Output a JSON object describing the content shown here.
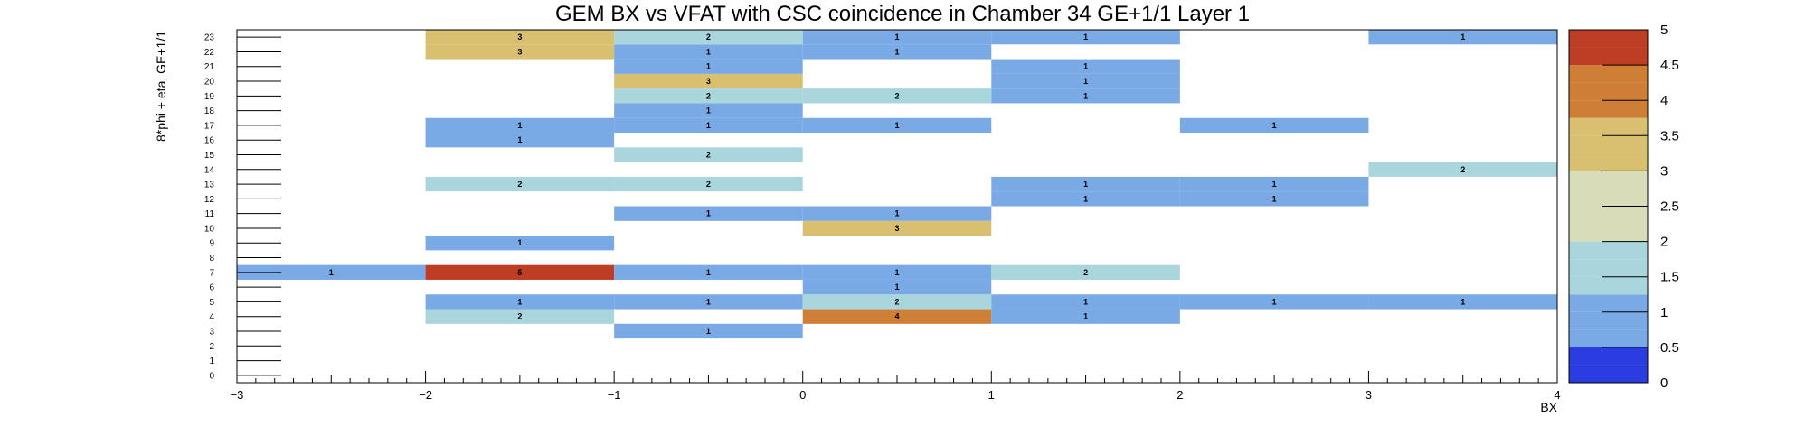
{
  "chart_data": {
    "type": "heatmap",
    "title": "GEM BX vs VFAT with CSC coincidence in Chamber 34 GE+1/1 Layer 1",
    "xlabel": "BX",
    "ylabel": "8*phi + eta, GE+1/1",
    "xlim": [
      -3,
      4
    ],
    "ylim": [
      0,
      24
    ],
    "x_ticks": [
      "−3",
      "−2",
      "−1",
      "0",
      "1",
      "2",
      "3",
      "4"
    ],
    "y_ticks": [
      "0",
      "1",
      "2",
      "3",
      "4",
      "5",
      "6",
      "7",
      "8",
      "9",
      "10",
      "11",
      "12",
      "13",
      "14",
      "15",
      "16",
      "17",
      "18",
      "19",
      "20",
      "21",
      "22",
      "23"
    ],
    "zlim": [
      0,
      5
    ],
    "z_ticks": [
      "0",
      "0.5",
      "1",
      "1.5",
      "2",
      "2.5",
      "3",
      "3.5",
      "4",
      "4.5",
      "5"
    ],
    "palette": [
      "#2a3de0",
      "#7aaae6",
      "#a8d6dc",
      "#d8dcb8",
      "#d9c070",
      "#cf7e36",
      "#bd3e24"
    ],
    "cells": [
      {
        "x": -3,
        "y": 7,
        "value": 1
      },
      {
        "x": -2,
        "y": 4,
        "value": 2
      },
      {
        "x": -2,
        "y": 5,
        "value": 1
      },
      {
        "x": -2,
        "y": 7,
        "value": 5
      },
      {
        "x": -2,
        "y": 9,
        "value": 1
      },
      {
        "x": -2,
        "y": 13,
        "value": 2
      },
      {
        "x": -2,
        "y": 16,
        "value": 1
      },
      {
        "x": -2,
        "y": 17,
        "value": 1
      },
      {
        "x": -2,
        "y": 22,
        "value": 3
      },
      {
        "x": -2,
        "y": 23,
        "value": 3
      },
      {
        "x": -1,
        "y": 3,
        "value": 1
      },
      {
        "x": -1,
        "y": 5,
        "value": 1
      },
      {
        "x": -1,
        "y": 7,
        "value": 1
      },
      {
        "x": -1,
        "y": 11,
        "value": 1
      },
      {
        "x": -1,
        "y": 13,
        "value": 2
      },
      {
        "x": -1,
        "y": 15,
        "value": 2
      },
      {
        "x": -1,
        "y": 17,
        "value": 1
      },
      {
        "x": -1,
        "y": 18,
        "value": 1
      },
      {
        "x": -1,
        "y": 19,
        "value": 2
      },
      {
        "x": -1,
        "y": 20,
        "value": 3
      },
      {
        "x": -1,
        "y": 21,
        "value": 1
      },
      {
        "x": -1,
        "y": 22,
        "value": 1
      },
      {
        "x": -1,
        "y": 23,
        "value": 2
      },
      {
        "x": 0,
        "y": 4,
        "value": 4
      },
      {
        "x": 0,
        "y": 5,
        "value": 2
      },
      {
        "x": 0,
        "y": 6,
        "value": 1
      },
      {
        "x": 0,
        "y": 7,
        "value": 1
      },
      {
        "x": 0,
        "y": 10,
        "value": 3
      },
      {
        "x": 0,
        "y": 11,
        "value": 1
      },
      {
        "x": 0,
        "y": 17,
        "value": 1
      },
      {
        "x": 0,
        "y": 19,
        "value": 2
      },
      {
        "x": 0,
        "y": 22,
        "value": 1
      },
      {
        "x": 0,
        "y": 23,
        "value": 1
      },
      {
        "x": 1,
        "y": 4,
        "value": 1
      },
      {
        "x": 1,
        "y": 5,
        "value": 1
      },
      {
        "x": 1,
        "y": 7,
        "value": 2
      },
      {
        "x": 1,
        "y": 12,
        "value": 1
      },
      {
        "x": 1,
        "y": 13,
        "value": 1
      },
      {
        "x": 1,
        "y": 19,
        "value": 1
      },
      {
        "x": 1,
        "y": 20,
        "value": 1
      },
      {
        "x": 1,
        "y": 21,
        "value": 1
      },
      {
        "x": 1,
        "y": 23,
        "value": 1
      },
      {
        "x": 2,
        "y": 5,
        "value": 1
      },
      {
        "x": 2,
        "y": 12,
        "value": 1
      },
      {
        "x": 2,
        "y": 13,
        "value": 1
      },
      {
        "x": 2,
        "y": 17,
        "value": 1
      },
      {
        "x": 3,
        "y": 5,
        "value": 1
      },
      {
        "x": 3,
        "y": 14,
        "value": 2
      },
      {
        "x": 3,
        "y": 23,
        "value": 1
      }
    ]
  }
}
